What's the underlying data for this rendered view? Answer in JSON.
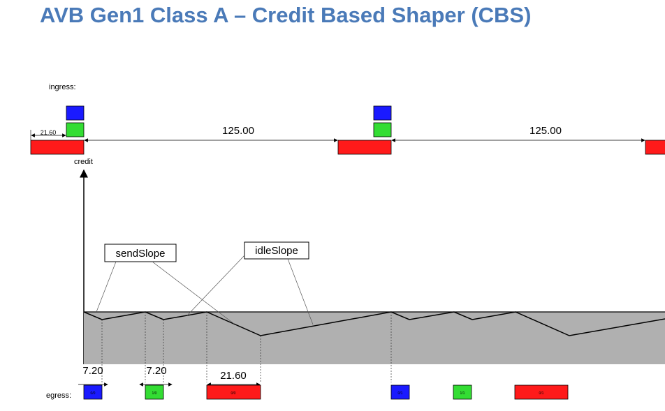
{
  "title": "AVB Gen1 Class A – Credit Based Shaper (CBS)",
  "labels": {
    "ingress": "ingress:",
    "credit": "credit",
    "egress": "egress:",
    "send_slope": "sendSlope",
    "idle_slope": "idleSlope"
  },
  "measurements": {
    "ingress_first_burst": "21.60",
    "interval_1": "125.00",
    "interval_2": "125.00",
    "egress_1": "7.20",
    "egress_2": "7.20",
    "egress_3": "21.60"
  },
  "egress_frames": [
    {
      "color": "blue",
      "text": "0/0"
    },
    {
      "color": "green",
      "text": "1/0"
    },
    {
      "color": "red",
      "text": "0/0"
    },
    {
      "color": "blue",
      "text": "0/1"
    },
    {
      "color": "green",
      "text": "1/1"
    },
    {
      "color": "red",
      "text": "0/1"
    }
  ],
  "colors": {
    "title": "#4a7ab8",
    "blue": "#1a1aff",
    "green": "#33dd33",
    "red": "#ff1a1a",
    "credit_fill": "#b0b0b0"
  }
}
